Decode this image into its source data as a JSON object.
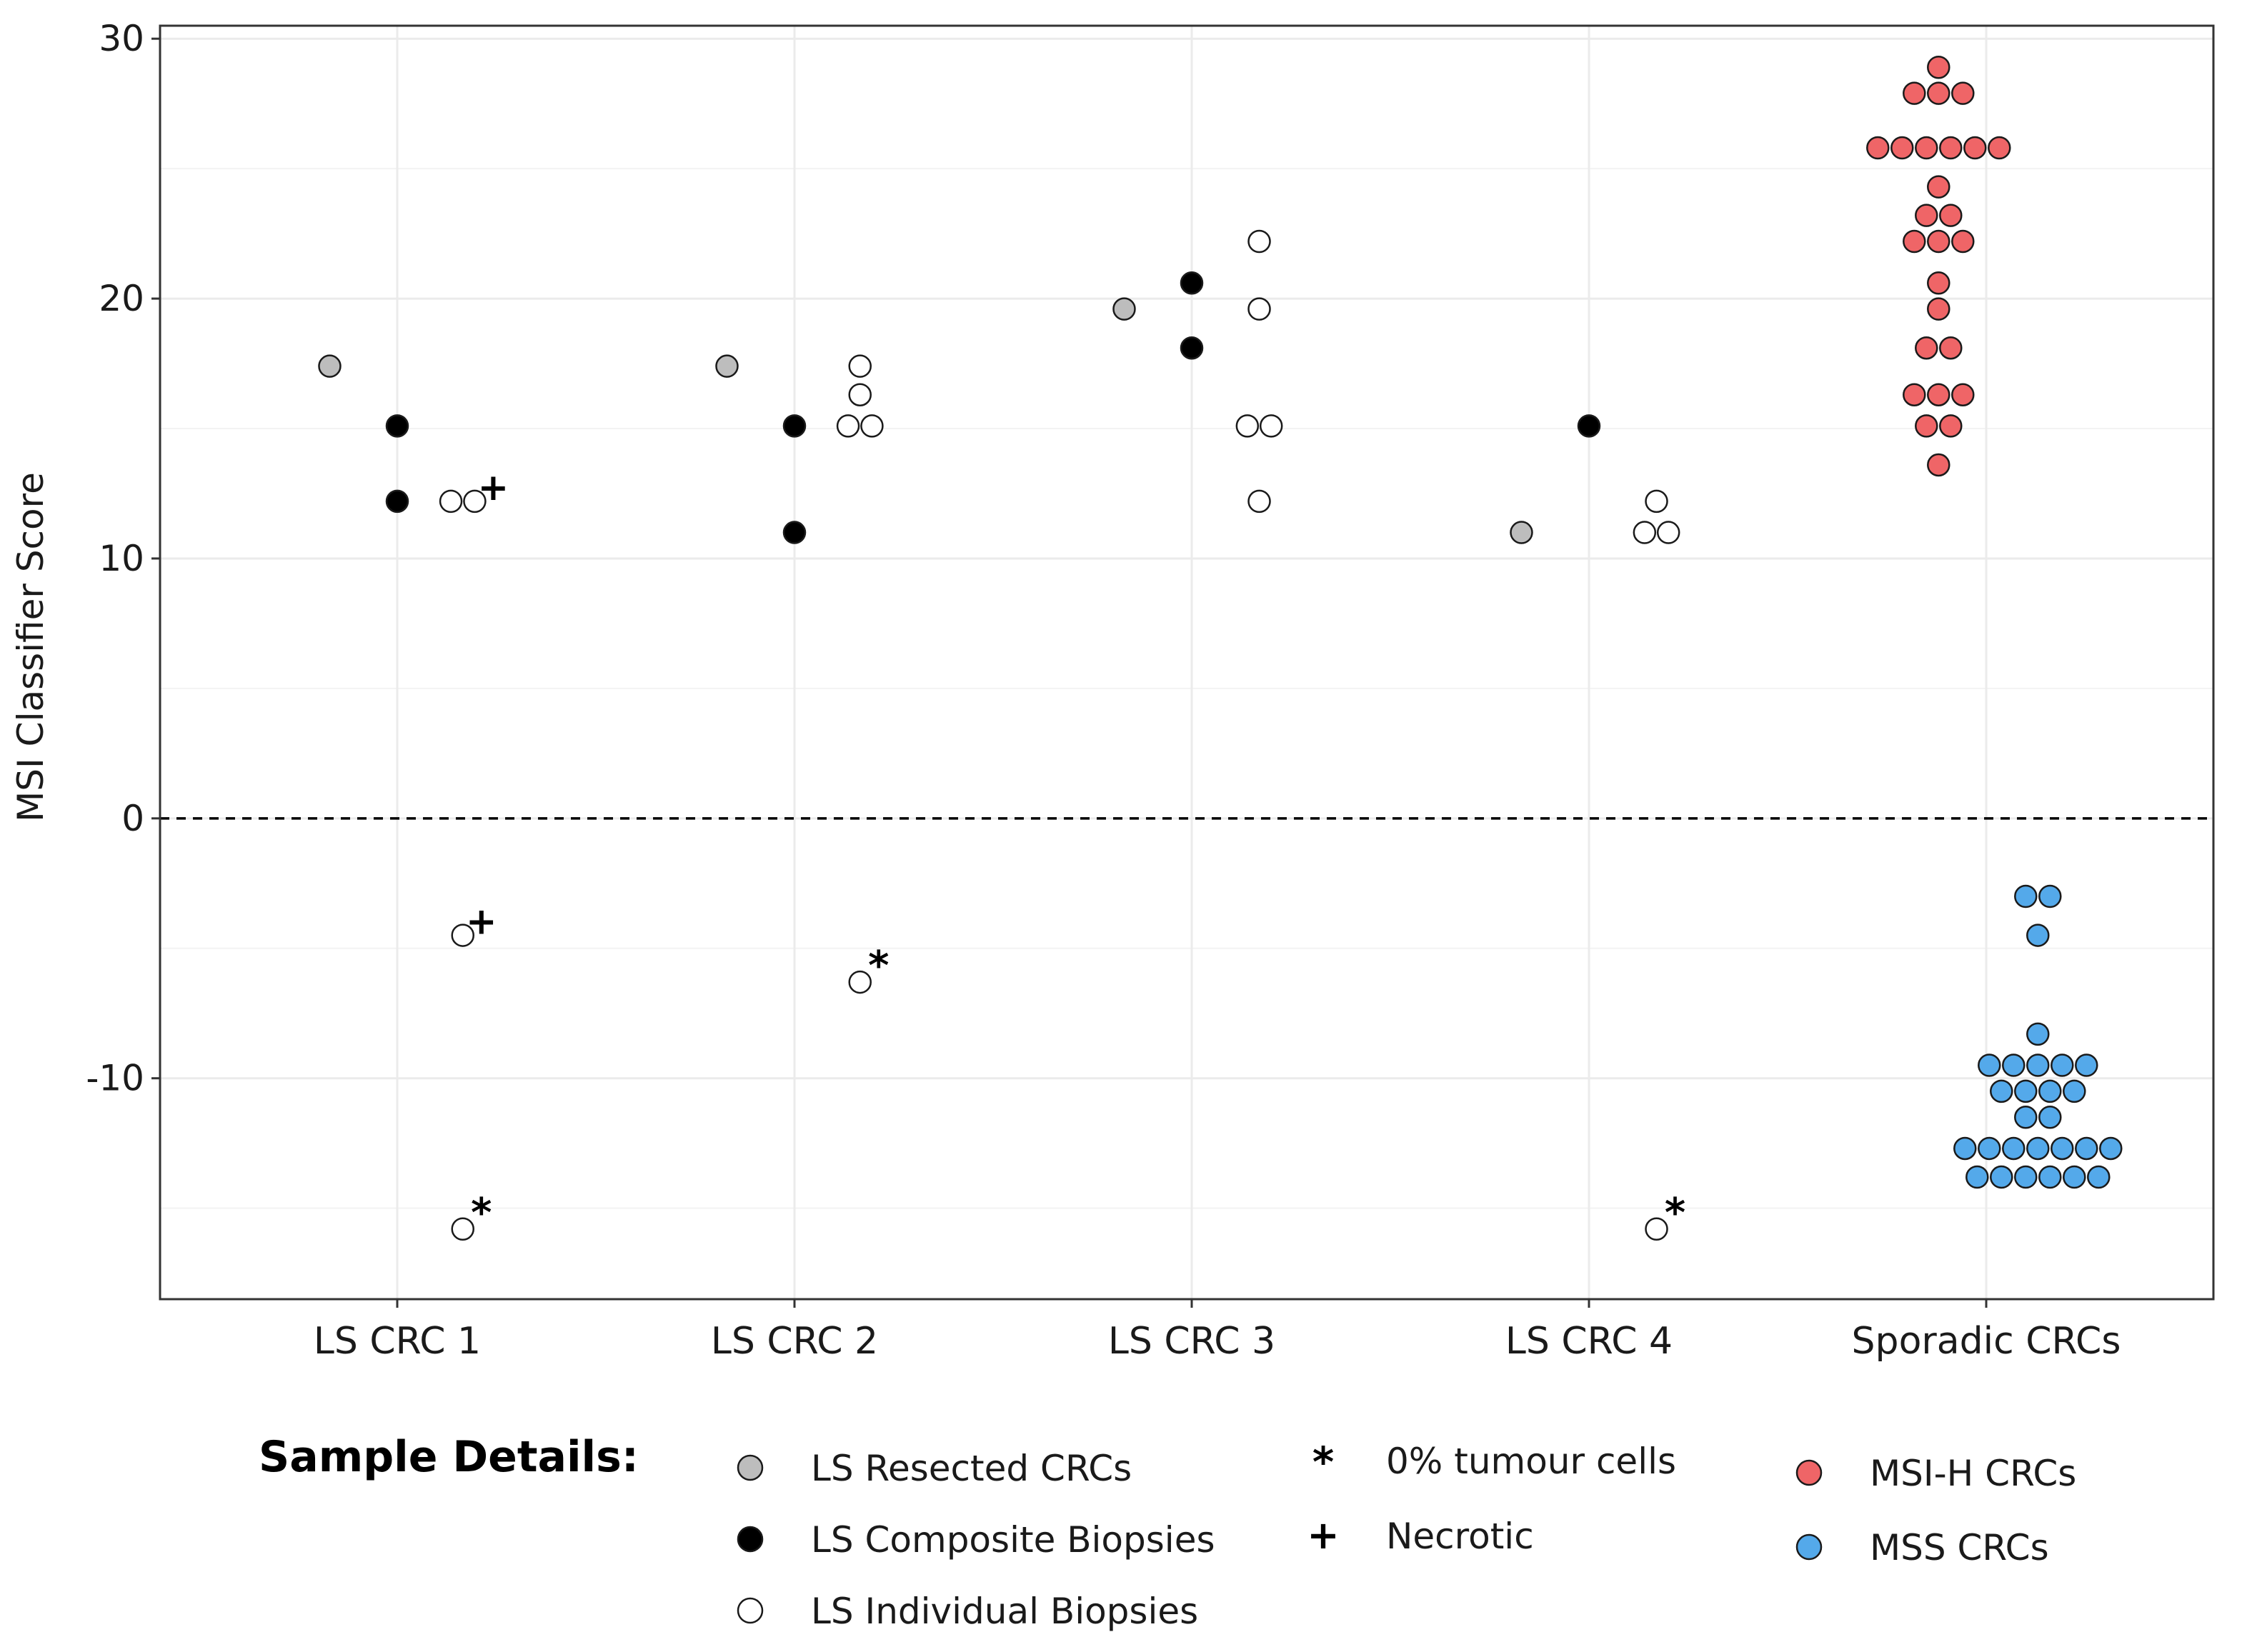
{
  "chart_data": {
    "type": "scatter",
    "title": "",
    "xlabel": "",
    "ylabel": "MSI Classifier Score",
    "categories": [
      "LS CRC 1",
      "LS CRC 2",
      "LS CRC 3",
      "LS CRC 4",
      "Sporadic CRCs"
    ],
    "ylim": [
      -18.5,
      30.5
    ],
    "yticks": [
      -10,
      0,
      10,
      20,
      30
    ],
    "ytick_labels": [
      "-10",
      "0",
      "10",
      "20",
      "30"
    ],
    "reference_line": 0,
    "colors": {
      "resected": "#bdbdbd",
      "composite": "#000000",
      "individual": "#ffffff",
      "msi_h": "#ef6567",
      "mss": "#54a9ea",
      "stroke": "#1a1a1a",
      "grid": "#ebebeb",
      "panel_border": "#333333"
    },
    "series": [
      {
        "name": "LS Resected CRCs",
        "style": "resected",
        "points": [
          {
            "category": "LS CRC 1",
            "offset": -0.17,
            "y": 17.4
          },
          {
            "category": "LS CRC 2",
            "offset": -0.17,
            "y": 17.4
          },
          {
            "category": "LS CRC 3",
            "offset": -0.17,
            "y": 19.6
          },
          {
            "category": "LS CRC 4",
            "offset": -0.17,
            "y": 11.0
          }
        ]
      },
      {
        "name": "LS Composite Biopsies",
        "style": "composite",
        "points": [
          {
            "category": "LS CRC 1",
            "offset": 0,
            "y": 15.1
          },
          {
            "category": "LS CRC 1",
            "offset": 0,
            "y": 12.2
          },
          {
            "category": "LS CRC 2",
            "offset": 0,
            "y": 15.1
          },
          {
            "category": "LS CRC 2",
            "offset": 0,
            "y": 11.0
          },
          {
            "category": "LS CRC 3",
            "offset": 0,
            "y": 20.6
          },
          {
            "category": "LS CRC 3",
            "offset": 0,
            "y": 18.1
          },
          {
            "category": "LS CRC 4",
            "offset": 0,
            "y": 15.1
          }
        ]
      },
      {
        "name": "LS Individual Biopsies",
        "style": "individual",
        "points": [
          {
            "category": "LS CRC 1",
            "offset": 0.135,
            "y": 12.2
          },
          {
            "category": "LS CRC 1",
            "offset": 0.195,
            "y": 12.2,
            "mark": "+"
          },
          {
            "category": "LS CRC 1",
            "offset": 0.165,
            "y": -4.5,
            "mark": "+"
          },
          {
            "category": "LS CRC 1",
            "offset": 0.165,
            "y": -15.8,
            "mark": "*"
          },
          {
            "category": "LS CRC 2",
            "offset": 0.165,
            "y": 17.4
          },
          {
            "category": "LS CRC 2",
            "offset": 0.165,
            "y": 16.3
          },
          {
            "category": "LS CRC 2",
            "offset": 0.135,
            "y": 15.1
          },
          {
            "category": "LS CRC 2",
            "offset": 0.195,
            "y": 15.1
          },
          {
            "category": "LS CRC 2",
            "offset": 0.165,
            "y": -6.3,
            "mark": "*"
          },
          {
            "category": "LS CRC 3",
            "offset": 0.17,
            "y": 22.2
          },
          {
            "category": "LS CRC 3",
            "offset": 0.17,
            "y": 19.6
          },
          {
            "category": "LS CRC 3",
            "offset": 0.14,
            "y": 15.1
          },
          {
            "category": "LS CRC 3",
            "offset": 0.2,
            "y": 15.1
          },
          {
            "category": "LS CRC 3",
            "offset": 0.17,
            "y": 12.2
          },
          {
            "category": "LS CRC 4",
            "offset": 0.17,
            "y": 12.2
          },
          {
            "category": "LS CRC 4",
            "offset": 0.14,
            "y": 11.0
          },
          {
            "category": "LS CRC 4",
            "offset": 0.2,
            "y": 11.0
          },
          {
            "category": "LS CRC 4",
            "offset": 0.17,
            "y": -15.8,
            "mark": "*"
          }
        ]
      },
      {
        "name": "MSI-H CRCs",
        "style": "msi_h",
        "center_offset": -0.12,
        "rows": [
          {
            "y": 28.9,
            "n": 1
          },
          {
            "y": 27.9,
            "n": 3
          },
          {
            "y": 25.8,
            "n": 6
          },
          {
            "y": 24.3,
            "n": 1
          },
          {
            "y": 23.2,
            "n": 2
          },
          {
            "y": 22.2,
            "n": 3
          },
          {
            "y": 20.6,
            "n": 1
          },
          {
            "y": 19.6,
            "n": 1
          },
          {
            "y": 18.1,
            "n": 2
          },
          {
            "y": 16.3,
            "n": 3
          },
          {
            "y": 15.1,
            "n": 2
          },
          {
            "y": 13.6,
            "n": 1
          }
        ]
      },
      {
        "name": "MSS CRCs",
        "style": "mss",
        "center_offset": 0.13,
        "rows": [
          {
            "y": -3.0,
            "n": 2
          },
          {
            "y": -4.5,
            "n": 1
          },
          {
            "y": -8.3,
            "n": 1
          },
          {
            "y": -9.5,
            "n": 5
          },
          {
            "y": -10.5,
            "n": 4
          },
          {
            "y": -11.5,
            "n": 2
          },
          {
            "y": -12.7,
            "n": 7
          },
          {
            "y": -13.8,
            "n": 6
          }
        ]
      }
    ],
    "legend": {
      "title": "Sample Details:",
      "position": "bottom",
      "entries": [
        {
          "style": "resected",
          "label": "LS Resected CRCs"
        },
        {
          "style": "composite",
          "label": "LS Composite Biopsies"
        },
        {
          "style": "individual",
          "label": "LS Individual Biopsies"
        },
        {
          "symbol": "*",
          "label": "0% tumour cells"
        },
        {
          "symbol": "+",
          "label": "Necrotic"
        },
        {
          "style": "msi_h",
          "label": "MSI-H CRCs"
        },
        {
          "style": "mss",
          "label": "MSS CRCs"
        }
      ]
    }
  }
}
